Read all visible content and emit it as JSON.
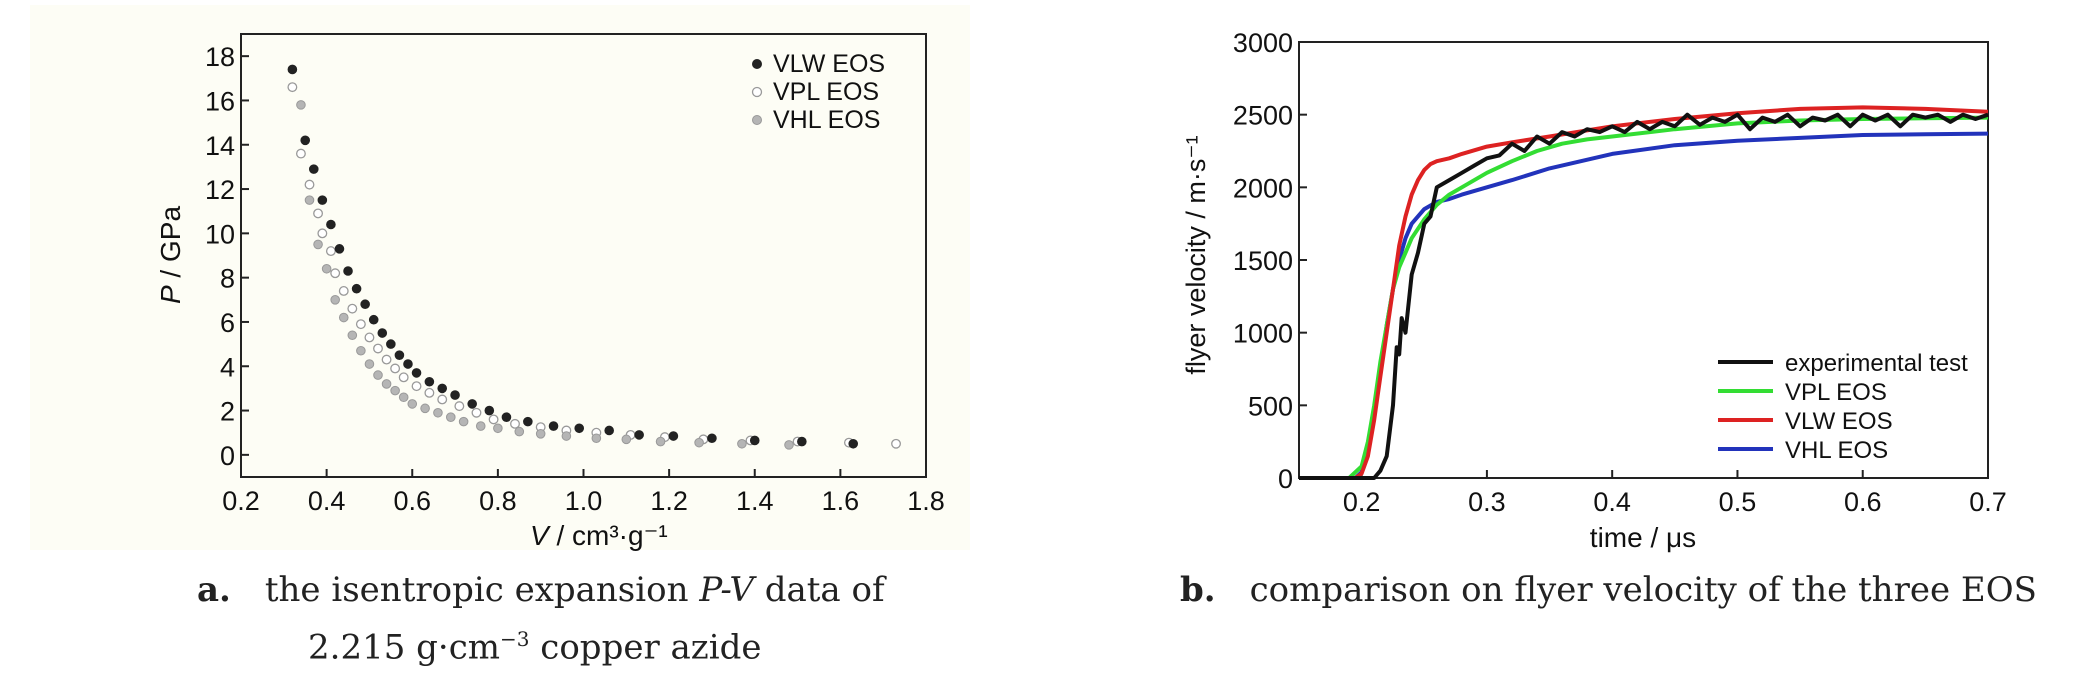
{
  "captions": {
    "a_letter": "a.",
    "a_line1_pre": "the isentropic expansion ",
    "a_line1_ital": "P-V",
    "a_line1_post": " data of",
    "a_line2_pre": "2.215 g·cm",
    "a_line2_sup": "−3",
    "a_line2_post": " copper azide",
    "b_letter": "b.",
    "b_text": "comparison on flyer velocity of the three EOS"
  },
  "colors": {
    "panel_bg_a": "#fdfdf5",
    "panel_bg_b": "#ffffff",
    "vlw_marker": "#222222",
    "vpl_marker": "#ffffff",
    "vhl_marker": "#b5b5b5",
    "experimental": "#111111",
    "vpl_line": "#33dd33",
    "vlw_line": "#dd2222",
    "vhl_line": "#2233bb"
  },
  "chart_data": [
    {
      "type": "scatter",
      "xlabel_main": "V",
      "xlabel_units": " / cm³·g⁻¹",
      "ylabel_main": "P",
      "ylabel_units": " / GPa",
      "xlim": [
        0.2,
        1.8
      ],
      "ylim": [
        -1,
        19
      ],
      "xticks": [
        0.2,
        0.4,
        0.6,
        0.8,
        1.0,
        1.2,
        1.4,
        1.6,
        1.8
      ],
      "xtick_labels": [
        "0.2",
        "0.4",
        "0.6",
        "0.8",
        "1.0",
        "1.2",
        "1.4",
        "1.6",
        "1.8"
      ],
      "yticks": [
        0,
        2,
        4,
        6,
        8,
        10,
        12,
        14,
        16,
        18
      ],
      "ytick_labels": [
        "0",
        "2",
        "4",
        "6",
        "8",
        "10",
        "12",
        "14",
        "16",
        "18"
      ],
      "legend": "top-right",
      "grid": false,
      "series": [
        {
          "name": "VLW EOS",
          "marker": "filled-black",
          "x": [
            0.32,
            0.35,
            0.37,
            0.39,
            0.41,
            0.43,
            0.45,
            0.47,
            0.49,
            0.51,
            0.53,
            0.55,
            0.57,
            0.59,
            0.61,
            0.64,
            0.67,
            0.7,
            0.74,
            0.78,
            0.82,
            0.87,
            0.93,
            0.99,
            1.06,
            1.13,
            1.21,
            1.3,
            1.4,
            1.51,
            1.63
          ],
          "y": [
            17.4,
            14.2,
            12.9,
            11.5,
            10.4,
            9.3,
            8.3,
            7.5,
            6.8,
            6.1,
            5.5,
            5.0,
            4.5,
            4.1,
            3.7,
            3.3,
            3.0,
            2.7,
            2.3,
            2.0,
            1.7,
            1.5,
            1.3,
            1.2,
            1.1,
            0.9,
            0.85,
            0.75,
            0.65,
            0.6,
            0.5
          ]
        },
        {
          "name": "VPL EOS",
          "marker": "open-circle",
          "x": [
            0.32,
            0.34,
            0.36,
            0.38,
            0.39,
            0.41,
            0.42,
            0.44,
            0.46,
            0.48,
            0.5,
            0.52,
            0.54,
            0.56,
            0.58,
            0.61,
            0.64,
            0.67,
            0.71,
            0.75,
            0.79,
            0.84,
            0.9,
            0.96,
            1.03,
            1.11,
            1.19,
            1.28,
            1.39,
            1.5,
            1.62,
            1.73
          ],
          "y": [
            16.6,
            13.6,
            12.2,
            10.9,
            10.0,
            9.2,
            8.2,
            7.4,
            6.6,
            5.9,
            5.3,
            4.8,
            4.3,
            3.9,
            3.5,
            3.1,
            2.8,
            2.5,
            2.2,
            1.9,
            1.6,
            1.4,
            1.25,
            1.1,
            1.0,
            0.9,
            0.8,
            0.7,
            0.65,
            0.6,
            0.55,
            0.5
          ]
        },
        {
          "name": "VHL EOS",
          "marker": "filled-gray",
          "x": [
            0.34,
            0.36,
            0.38,
            0.4,
            0.42,
            0.44,
            0.46,
            0.48,
            0.5,
            0.52,
            0.54,
            0.56,
            0.58,
            0.6,
            0.63,
            0.66,
            0.69,
            0.72,
            0.76,
            0.8,
            0.85,
            0.9,
            0.96,
            1.03,
            1.1,
            1.18,
            1.27,
            1.37,
            1.48
          ],
          "y": [
            15.8,
            11.5,
            9.5,
            8.4,
            7.0,
            6.2,
            5.4,
            4.7,
            4.1,
            3.6,
            3.2,
            2.9,
            2.6,
            2.3,
            2.1,
            1.9,
            1.7,
            1.5,
            1.3,
            1.2,
            1.05,
            0.95,
            0.85,
            0.75,
            0.7,
            0.6,
            0.55,
            0.5,
            0.45
          ]
        }
      ]
    },
    {
      "type": "line",
      "xlabel_main": "time",
      "xlabel_units": " / μs",
      "ylabel_main": "flyer velocity",
      "ylabel_units": " / m·s⁻¹",
      "xlim": [
        0.15,
        0.7
      ],
      "ylim": [
        0,
        3000
      ],
      "xticks": [
        0.2,
        0.3,
        0.4,
        0.5,
        0.6,
        0.7
      ],
      "xtick_labels": [
        "0.2",
        "0.3",
        "0.4",
        "0.5",
        "0.6",
        "0.7"
      ],
      "yticks": [
        0,
        500,
        1000,
        1500,
        2000,
        2500,
        3000
      ],
      "ytick_labels": [
        "0",
        "500",
        "1000",
        "1500",
        "2000",
        "2500",
        "3000"
      ],
      "legend": "bottom-right",
      "grid": false,
      "series": [
        {
          "name": "experimental test",
          "x": [
            0.15,
            0.21,
            0.215,
            0.22,
            0.225,
            0.228,
            0.23,
            0.232,
            0.235,
            0.24,
            0.245,
            0.25,
            0.255,
            0.26,
            0.27,
            0.28,
            0.29,
            0.3,
            0.31,
            0.32,
            0.33,
            0.34,
            0.35,
            0.36,
            0.37,
            0.38,
            0.39,
            0.4,
            0.41,
            0.42,
            0.43,
            0.44,
            0.45,
            0.46,
            0.47,
            0.48,
            0.49,
            0.5,
            0.51,
            0.52,
            0.53,
            0.54,
            0.55,
            0.56,
            0.57,
            0.58,
            0.59,
            0.6,
            0.61,
            0.62,
            0.63,
            0.64,
            0.65,
            0.66,
            0.67,
            0.68,
            0.69,
            0.7
          ],
          "y": [
            0,
            0,
            50,
            150,
            500,
            900,
            850,
            1100,
            1000,
            1400,
            1550,
            1750,
            1800,
            2000,
            2050,
            2100,
            2150,
            2200,
            2220,
            2300,
            2250,
            2350,
            2300,
            2380,
            2350,
            2400,
            2380,
            2420,
            2380,
            2450,
            2400,
            2450,
            2420,
            2500,
            2430,
            2480,
            2450,
            2500,
            2400,
            2480,
            2450,
            2500,
            2420,
            2480,
            2460,
            2500,
            2420,
            2500,
            2460,
            2500,
            2420,
            2500,
            2480,
            2500,
            2450,
            2500,
            2470,
            2500
          ]
        },
        {
          "name": "VPL EOS",
          "x": [
            0.15,
            0.19,
            0.2,
            0.205,
            0.21,
            0.215,
            0.22,
            0.225,
            0.23,
            0.235,
            0.24,
            0.25,
            0.26,
            0.27,
            0.28,
            0.3,
            0.32,
            0.34,
            0.36,
            0.38,
            0.4,
            0.45,
            0.5,
            0.55,
            0.6,
            0.65,
            0.7
          ],
          "y": [
            0,
            0,
            80,
            250,
            500,
            800,
            1050,
            1300,
            1450,
            1550,
            1650,
            1780,
            1880,
            1950,
            2000,
            2100,
            2180,
            2250,
            2300,
            2330,
            2350,
            2400,
            2440,
            2460,
            2470,
            2475,
            2480
          ]
        },
        {
          "name": "VLW EOS",
          "x": [
            0.15,
            0.195,
            0.2,
            0.205,
            0.21,
            0.215,
            0.22,
            0.225,
            0.23,
            0.235,
            0.24,
            0.245,
            0.25,
            0.255,
            0.26,
            0.27,
            0.28,
            0.3,
            0.32,
            0.35,
            0.4,
            0.45,
            0.5,
            0.55,
            0.6,
            0.65,
            0.7
          ],
          "y": [
            0,
            0,
            30,
            150,
            400,
            700,
            1000,
            1300,
            1600,
            1800,
            1950,
            2050,
            2120,
            2160,
            2180,
            2200,
            2230,
            2280,
            2310,
            2350,
            2420,
            2470,
            2510,
            2540,
            2550,
            2540,
            2520
          ]
        },
        {
          "name": "VHL EOS",
          "x": [
            0.15,
            0.195,
            0.2,
            0.205,
            0.21,
            0.215,
            0.22,
            0.225,
            0.23,
            0.235,
            0.24,
            0.25,
            0.26,
            0.27,
            0.28,
            0.3,
            0.32,
            0.35,
            0.4,
            0.45,
            0.5,
            0.55,
            0.6,
            0.65,
            0.7
          ],
          "y": [
            0,
            0,
            40,
            200,
            450,
            750,
            1050,
            1300,
            1500,
            1650,
            1750,
            1850,
            1900,
            1920,
            1950,
            2000,
            2050,
            2130,
            2230,
            2290,
            2320,
            2340,
            2360,
            2365,
            2370
          ]
        }
      ]
    }
  ]
}
